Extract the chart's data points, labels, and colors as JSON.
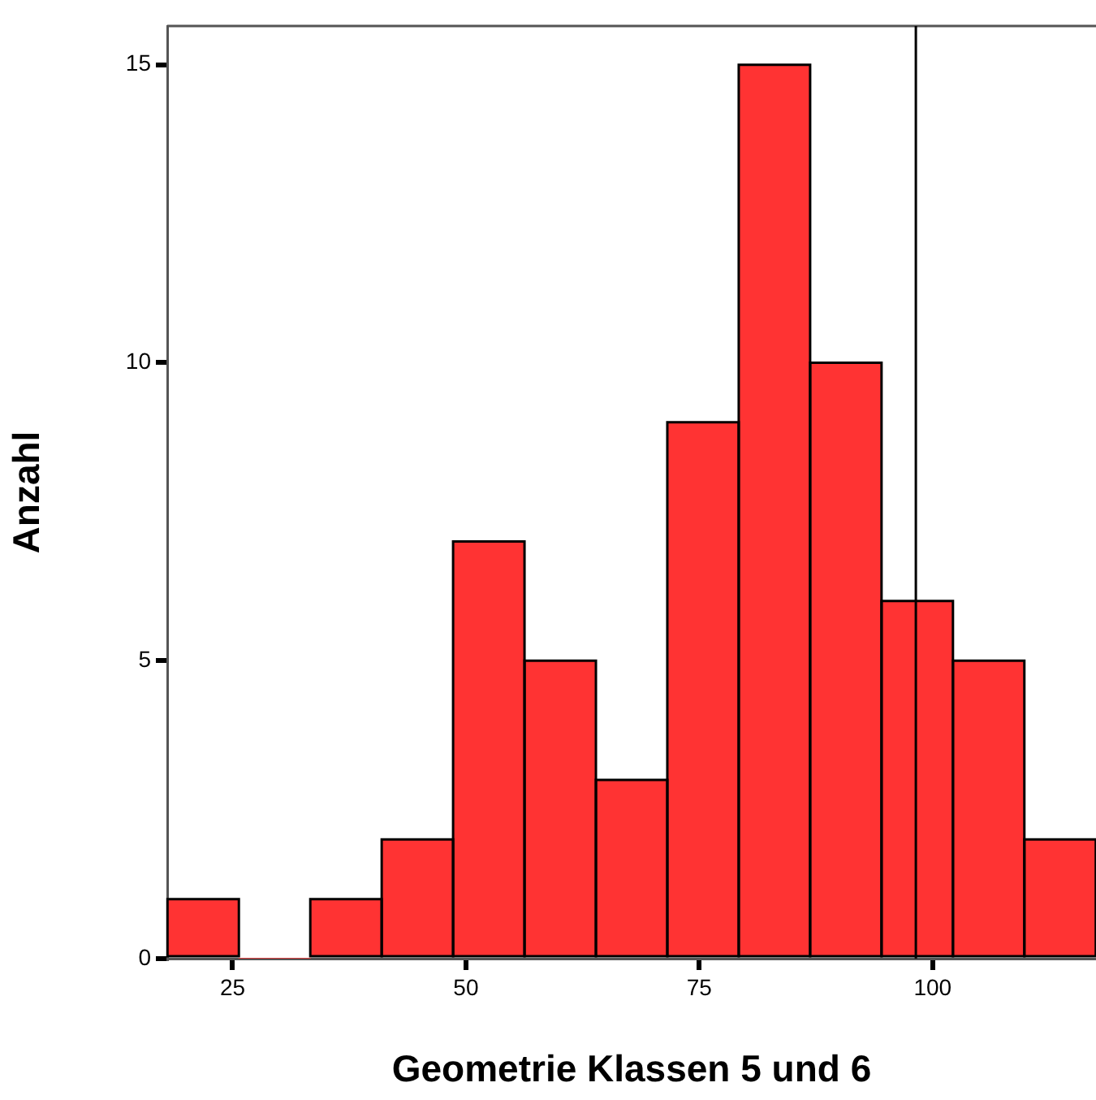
{
  "chart_data": {
    "type": "histogram",
    "xlabel": "Geometrie Klassen 5 und 6",
    "ylabel": "Anzahl",
    "bins": [
      18,
      25.7,
      33.3,
      41,
      48.6,
      56.3,
      63.9,
      71.6,
      79.2,
      86.9,
      94.5,
      102.2,
      109.8,
      117.5
    ],
    "values": [
      1,
      0,
      1,
      2,
      7,
      5,
      3,
      9,
      15,
      10,
      6,
      5,
      2
    ],
    "color": "#ff3333",
    "xlim": [
      18,
      117.5
    ],
    "xticks": [
      25,
      50,
      75,
      100
    ],
    "ylim": [
      0,
      15.65
    ],
    "yticks": [
      0,
      5,
      10,
      15
    ],
    "ref_lines": [
      {
        "axis": "x",
        "value": 98.2,
        "color": "#000000"
      }
    ],
    "grid": false,
    "legend": false
  }
}
